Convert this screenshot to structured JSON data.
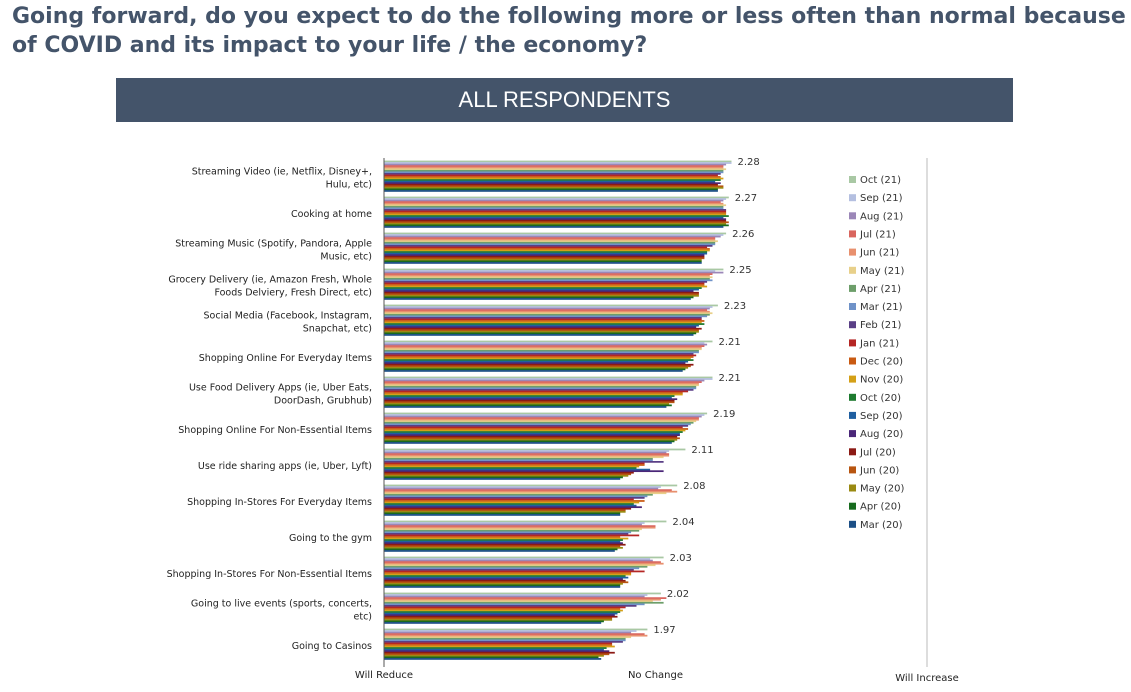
{
  "page": {
    "title": "Going forward, do you expect to do the following more or less often than normal because of COVID and its impact to your life / the economy?",
    "banner": "ALL RESPONDENTS"
  },
  "chart_data": {
    "type": "bar",
    "orientation": "horizontal",
    "title": "ALL RESPONDENTS",
    "xlim": [
      1,
      3
    ],
    "x_tick_labels": [
      {
        "value": 1,
        "label": "Will Reduce"
      },
      {
        "value": 2,
        "label": "No Change"
      },
      {
        "value": 3,
        "label": "Will Increase"
      }
    ],
    "categories": [
      "Streaming Video (ie, Netflix, Disney+, Hulu, etc)",
      "Cooking at home",
      "Streaming Music (Spotify, Pandora, Apple Music, etc)",
      "Grocery Delivery (ie, Amazon Fresh, Whole Foods Delviery, Fresh Direct, etc)",
      "Social Media  (Facebook, Instagram, Snapchat, etc)",
      "Shopping Online For Everyday Items",
      "Use Food Delivery Apps (ie, Uber Eats, DoorDash, Grubhub)",
      "Shopping Online For Non-Essential Items",
      "Use ride sharing apps (ie, Uber, Lyft)",
      "Shopping In-Stores For Everyday Items",
      "Going to the gym",
      "Shopping In-Stores For Non-Essential Items",
      "Going to live events (sports, concerts, etc)",
      "Going to Casinos"
    ],
    "data_labels": [
      "2.28",
      "2.27",
      "2.26",
      "2.25",
      "2.23",
      "2.21",
      "2.21",
      "2.19",
      "2.11",
      "2.08",
      "2.04",
      "2.03",
      "2.02",
      "1.97"
    ],
    "series": [
      {
        "name": "Oct (21)",
        "color": "#a9c8a4",
        "values": [
          2.28,
          2.27,
          2.26,
          2.25,
          2.23,
          2.21,
          2.21,
          2.19,
          2.11,
          2.08,
          2.04,
          2.03,
          2.02,
          1.97
        ]
      },
      {
        "name": "Sep (21)",
        "color": "#b4bfe0",
        "values": [
          2.28,
          2.26,
          2.25,
          2.22,
          2.21,
          2.18,
          2.21,
          2.18,
          2.05,
          2.02,
          1.96,
          1.98,
          1.97,
          1.93
        ]
      },
      {
        "name": "Aug (21)",
        "color": "#9b87b8",
        "values": [
          2.26,
          2.25,
          2.24,
          2.25,
          2.2,
          2.19,
          2.18,
          2.17,
          2.04,
          2.01,
          1.95,
          1.99,
          1.96,
          1.91
        ]
      },
      {
        "name": "Jul (21)",
        "color": "#d9655e",
        "values": [
          2.25,
          2.24,
          2.22,
          2.21,
          2.19,
          2.18,
          2.17,
          2.16,
          2.05,
          2.06,
          2.0,
          2.02,
          2.04,
          1.96
        ]
      },
      {
        "name": "Jun (21)",
        "color": "#e8906e",
        "values": [
          2.25,
          2.25,
          2.22,
          2.2,
          2.2,
          2.17,
          2.16,
          2.16,
          2.05,
          2.08,
          2.0,
          2.03,
          2.02,
          1.97
        ]
      },
      {
        "name": "May (21)",
        "color": "#e8d08a",
        "values": [
          2.26,
          2.26,
          2.23,
          2.21,
          2.21,
          2.17,
          2.16,
          2.15,
          2.03,
          2.04,
          1.95,
          2.0,
          1.99,
          1.91
        ]
      },
      {
        "name": "Apr (21)",
        "color": "#6d9e6a",
        "values": [
          2.25,
          2.25,
          2.22,
          2.2,
          2.2,
          2.16,
          2.15,
          2.14,
          1.99,
          1.99,
          1.94,
          1.97,
          2.03,
          1.89
        ]
      },
      {
        "name": "Mar (21)",
        "color": "#6f92c8",
        "values": [
          2.25,
          2.25,
          2.22,
          2.21,
          2.19,
          2.16,
          2.15,
          2.13,
          1.99,
          1.97,
          1.91,
          1.94,
          1.96,
          1.89
        ]
      },
      {
        "name": "Feb (21)",
        "color": "#5a3f86",
        "values": [
          2.24,
          2.26,
          2.21,
          2.19,
          2.17,
          2.14,
          2.14,
          2.12,
          2.03,
          1.96,
          1.9,
          1.92,
          1.93,
          1.88
        ]
      },
      {
        "name": "Jan (21)",
        "color": "#b52624",
        "values": [
          2.23,
          2.26,
          2.19,
          2.18,
          2.17,
          2.15,
          2.12,
          2.1,
          1.96,
          1.92,
          1.94,
          1.96,
          1.89,
          1.84
        ]
      },
      {
        "name": "Dec (20)",
        "color": "#c95a12",
        "values": [
          2.24,
          2.26,
          2.2,
          2.18,
          2.18,
          2.14,
          2.1,
          2.12,
          1.96,
          1.96,
          1.87,
          1.91,
          1.87,
          1.84
        ]
      },
      {
        "name": "Nov (20)",
        "color": "#d4a017",
        "values": [
          2.25,
          2.26,
          2.2,
          2.19,
          2.17,
          2.13,
          2.1,
          2.11,
          1.94,
          1.94,
          1.9,
          1.91,
          1.88,
          1.85
        ]
      },
      {
        "name": "Oct (20)",
        "color": "#1d7a2f",
        "values": [
          2.24,
          2.27,
          2.19,
          2.17,
          2.18,
          2.14,
          2.07,
          2.1,
          1.93,
          1.92,
          1.88,
          1.89,
          1.87,
          1.82
        ]
      },
      {
        "name": "Sep (20)",
        "color": "#1f5fa0",
        "values": [
          2.22,
          2.25,
          2.19,
          2.16,
          2.16,
          2.12,
          2.06,
          2.09,
          1.98,
          1.93,
          1.87,
          1.9,
          1.86,
          1.81
        ]
      },
      {
        "name": "Aug (20)",
        "color": "#4a2678",
        "values": [
          2.24,
          2.26,
          2.18,
          2.14,
          2.15,
          2.11,
          2.08,
          2.09,
          2.03,
          1.95,
          1.88,
          1.88,
          1.85,
          1.83
        ]
      },
      {
        "name": "Jul (20)",
        "color": "#8c1a14",
        "values": [
          2.23,
          2.26,
          2.18,
          2.16,
          2.17,
          2.14,
          2.07,
          2.08,
          1.92,
          1.91,
          1.89,
          1.89,
          1.86,
          1.85
        ]
      },
      {
        "name": "Jun (20)",
        "color": "#b85510",
        "values": [
          2.25,
          2.27,
          2.18,
          2.16,
          2.16,
          2.13,
          2.07,
          2.09,
          1.91,
          1.89,
          1.87,
          1.9,
          1.84,
          1.83
        ]
      },
      {
        "name": "May (20)",
        "color": "#9a8a12",
        "values": [
          2.25,
          2.26,
          2.17,
          2.16,
          2.16,
          2.12,
          2.05,
          2.08,
          1.9,
          1.89,
          1.88,
          1.88,
          1.84,
          1.81
        ]
      },
      {
        "name": "Apr (20)",
        "color": "#176b1e",
        "values": [
          2.23,
          2.27,
          2.17,
          2.14,
          2.15,
          2.11,
          2.06,
          2.07,
          1.88,
          1.87,
          1.86,
          1.87,
          1.81,
          1.79
        ]
      },
      {
        "name": "Mar (20)",
        "color": "#1c4f86",
        "values": [
          2.23,
          2.25,
          2.17,
          2.13,
          2.14,
          2.1,
          2.04,
          2.06,
          1.87,
          1.87,
          1.85,
          1.87,
          1.8,
          1.8
        ]
      }
    ],
    "legend_position": "right",
    "grid": false
  }
}
